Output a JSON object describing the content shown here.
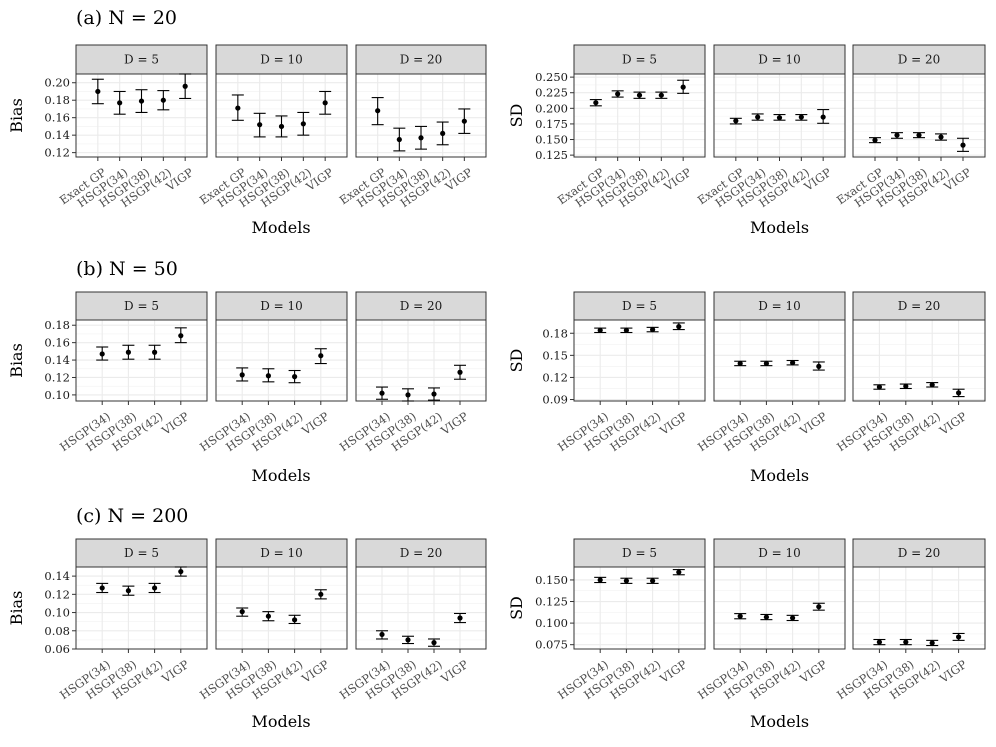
{
  "chart_data": [
    {
      "row_title": "(a) N = 20",
      "type": "errorbar",
      "xlabel": "Models",
      "plots": [
        {
          "ylabel": "Bias",
          "ylim": [
            0.115,
            0.21
          ],
          "yticks": [
            0.12,
            0.14,
            0.16,
            0.18,
            0.2
          ],
          "ytick_labels": [
            "0.12",
            "0.14",
            "0.16",
            "0.18",
            "0.20"
          ],
          "categories": [
            "Exact GP",
            "HSGP(34)",
            "HSGP(38)",
            "HSGP(42)",
            "VIGP"
          ],
          "facets": [
            {
              "label": "D = 5",
              "mean": [
                0.19,
                0.177,
                0.179,
                0.18,
                0.196
              ],
              "lower": [
                0.176,
                0.164,
                0.166,
                0.169,
                0.182
              ],
              "upper": [
                0.204,
                0.19,
                0.192,
                0.191,
                0.21
              ]
            },
            {
              "label": "D = 10",
              "mean": [
                0.171,
                0.152,
                0.15,
                0.153,
                0.177
              ],
              "lower": [
                0.157,
                0.138,
                0.138,
                0.14,
                0.164
              ],
              "upper": [
                0.186,
                0.165,
                0.162,
                0.166,
                0.19
              ]
            },
            {
              "label": "D = 20",
              "mean": [
                0.168,
                0.135,
                0.137,
                0.142,
                0.156
              ],
              "lower": [
                0.152,
                0.122,
                0.124,
                0.129,
                0.142
              ],
              "upper": [
                0.183,
                0.148,
                0.15,
                0.155,
                0.17
              ]
            }
          ]
        },
        {
          "ylabel": "SD",
          "ylim": [
            0.122,
            0.255
          ],
          "yticks": [
            0.125,
            0.15,
            0.175,
            0.2,
            0.225,
            0.25
          ],
          "ytick_labels": [
            "0.125",
            "0.150",
            "0.175",
            "0.200",
            "0.225",
            "0.250"
          ],
          "categories": [
            "Exact GP",
            "HSGP(34)",
            "HSGP(38)",
            "HSGP(42)",
            "VIGP"
          ],
          "facets": [
            {
              "label": "D = 5",
              "mean": [
                0.209,
                0.223,
                0.221,
                0.221,
                0.234
              ],
              "lower": [
                0.204,
                0.218,
                0.216,
                0.216,
                0.224
              ],
              "upper": [
                0.214,
                0.228,
                0.226,
                0.226,
                0.245
              ]
            },
            {
              "label": "D = 10",
              "mean": [
                0.18,
                0.186,
                0.185,
                0.186,
                0.186
              ],
              "lower": [
                0.175,
                0.181,
                0.181,
                0.181,
                0.176
              ],
              "upper": [
                0.184,
                0.191,
                0.19,
                0.19,
                0.198
              ]
            },
            {
              "label": "D = 20",
              "mean": [
                0.149,
                0.157,
                0.157,
                0.154,
                0.141
              ],
              "lower": [
                0.145,
                0.152,
                0.153,
                0.149,
                0.131
              ],
              "upper": [
                0.153,
                0.161,
                0.161,
                0.159,
                0.152
              ]
            }
          ]
        }
      ]
    },
    {
      "row_title": "(b) N = 50",
      "type": "errorbar",
      "xlabel": "Models",
      "plots": [
        {
          "ylabel": "Bias",
          "ylim": [
            0.093,
            0.186
          ],
          "yticks": [
            0.1,
            0.12,
            0.14,
            0.16,
            0.18
          ],
          "ytick_labels": [
            "0.10",
            "0.12",
            "0.14",
            "0.16",
            "0.18"
          ],
          "categories": [
            "HSGP(34)",
            "HSGP(38)",
            "HSGP(42)",
            "VIGP"
          ],
          "facets": [
            {
              "label": "D = 5",
              "mean": [
                0.147,
                0.149,
                0.149,
                0.168
              ],
              "lower": [
                0.14,
                0.141,
                0.141,
                0.16
              ],
              "upper": [
                0.155,
                0.157,
                0.157,
                0.177
              ]
            },
            {
              "label": "D = 10",
              "mean": [
                0.123,
                0.122,
                0.121,
                0.145
              ],
              "lower": [
                0.116,
                0.115,
                0.114,
                0.136
              ],
              "upper": [
                0.131,
                0.13,
                0.128,
                0.153
              ]
            },
            {
              "label": "D = 20",
              "mean": [
                0.102,
                0.1,
                0.101,
                0.126
              ],
              "lower": [
                0.095,
                0.093,
                0.094,
                0.118
              ],
              "upper": [
                0.109,
                0.107,
                0.108,
                0.134
              ]
            }
          ]
        },
        {
          "ylabel": "SD",
          "ylim": [
            0.088,
            0.198
          ],
          "yticks": [
            0.09,
            0.12,
            0.15,
            0.18
          ],
          "ytick_labels": [
            "0.09",
            "0.12",
            "0.15",
            "0.18"
          ],
          "categories": [
            "HSGP(34)",
            "HSGP(38)",
            "HSGP(42)",
            "VIGP"
          ],
          "facets": [
            {
              "label": "D = 5",
              "mean": [
                0.184,
                0.184,
                0.185,
                0.189
              ],
              "lower": [
                0.181,
                0.181,
                0.182,
                0.185
              ],
              "upper": [
                0.187,
                0.187,
                0.188,
                0.194
              ]
            },
            {
              "label": "D = 10",
              "mean": [
                0.139,
                0.139,
                0.14,
                0.135
              ],
              "lower": [
                0.136,
                0.136,
                0.137,
                0.13
              ],
              "upper": [
                0.142,
                0.142,
                0.143,
                0.141
              ]
            },
            {
              "label": "D = 20",
              "mean": [
                0.107,
                0.108,
                0.11,
                0.099
              ],
              "lower": [
                0.104,
                0.105,
                0.107,
                0.094
              ],
              "upper": [
                0.11,
                0.111,
                0.113,
                0.104
              ]
            }
          ]
        }
      ]
    },
    {
      "row_title": "(c) N = 200",
      "type": "errorbar",
      "xlabel": "Models",
      "plots": [
        {
          "ylabel": "Bias",
          "ylim": [
            0.06,
            0.15
          ],
          "yticks": [
            0.06,
            0.08,
            0.1,
            0.12,
            0.14
          ],
          "ytick_labels": [
            "0.06",
            "0.08",
            "0.10",
            "0.12",
            "0.14"
          ],
          "categories": [
            "HSGP(34)",
            "HSGP(38)",
            "HSGP(42)",
            "VIGP"
          ],
          "facets": [
            {
              "label": "D = 5",
              "mean": [
                0.127,
                0.124,
                0.127,
                0.145
              ],
              "lower": [
                0.122,
                0.119,
                0.122,
                0.14
              ],
              "upper": [
                0.132,
                0.129,
                0.132,
                0.15
              ]
            },
            {
              "label": "D = 10",
              "mean": [
                0.101,
                0.096,
                0.092,
                0.12
              ],
              "lower": [
                0.096,
                0.091,
                0.088,
                0.115
              ],
              "upper": [
                0.105,
                0.101,
                0.097,
                0.125
              ]
            },
            {
              "label": "D = 20",
              "mean": [
                0.076,
                0.07,
                0.067,
                0.094
              ],
              "lower": [
                0.071,
                0.066,
                0.063,
                0.089
              ],
              "upper": [
                0.08,
                0.074,
                0.071,
                0.099
              ]
            }
          ]
        },
        {
          "ylabel": "SD",
          "ylim": [
            0.07,
            0.165
          ],
          "yticks": [
            0.075,
            0.1,
            0.125,
            0.15
          ],
          "ytick_labels": [
            "0.075",
            "0.100",
            "0.125",
            "0.150"
          ],
          "categories": [
            "HSGP(34)",
            "HSGP(38)",
            "HSGP(42)",
            "VIGP"
          ],
          "facets": [
            {
              "label": "D = 5",
              "mean": [
                0.15,
                0.149,
                0.149,
                0.159
              ],
              "lower": [
                0.147,
                0.146,
                0.146,
                0.156
              ],
              "upper": [
                0.153,
                0.152,
                0.152,
                0.162
              ]
            },
            {
              "label": "D = 10",
              "mean": [
                0.108,
                0.107,
                0.106,
                0.119
              ],
              "lower": [
                0.105,
                0.104,
                0.103,
                0.115
              ],
              "upper": [
                0.111,
                0.11,
                0.109,
                0.123
              ]
            },
            {
              "label": "D = 20",
              "mean": [
                0.078,
                0.078,
                0.077,
                0.084
              ],
              "lower": [
                0.075,
                0.075,
                0.074,
                0.08
              ],
              "upper": [
                0.081,
                0.081,
                0.08,
                0.088
              ]
            }
          ]
        }
      ]
    }
  ]
}
